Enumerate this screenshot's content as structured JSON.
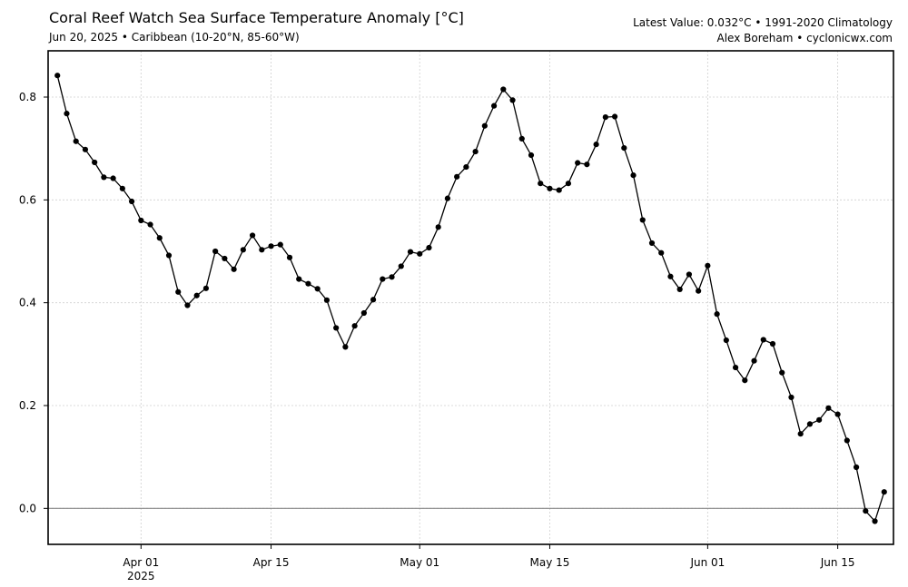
{
  "header": {
    "title": "Coral Reef Watch Sea Surface Temperature Anomaly [°C]",
    "subtitle": "Jun 20, 2025 • Caribbean (10-20°N, 85-60°W)",
    "latest": "Latest Value: 0.032°C • 1991-2020 Climatology",
    "credit": "Alex Boreham • cyclonicwx.com"
  },
  "chart_data": {
    "type": "line",
    "title": "Coral Reef Watch Sea Surface Temperature Anomaly [°C]",
    "subtitle": "Jun 20, 2025 • Caribbean (10-20°N, 85-60°W)",
    "xlabel": "",
    "ylabel": "",
    "x_start": "2025-03-23",
    "x_end": "2025-06-20",
    "xlim": [
      "2025-03-22",
      "2025-06-21"
    ],
    "ylim": [
      -0.07,
      0.89
    ],
    "grid": true,
    "zero_line": true,
    "series_color": "#000000",
    "zero_line_color": "#888888",
    "xticks": [
      {
        "date": "2025-04-01",
        "label": "Apr 01",
        "sublabel": "2025"
      },
      {
        "date": "2025-04-15",
        "label": "Apr 15",
        "sublabel": ""
      },
      {
        "date": "2025-05-01",
        "label": "May 01",
        "sublabel": ""
      },
      {
        "date": "2025-05-15",
        "label": "May 15",
        "sublabel": ""
      },
      {
        "date": "2025-06-01",
        "label": "Jun 01",
        "sublabel": ""
      },
      {
        "date": "2025-06-15",
        "label": "Jun 15",
        "sublabel": ""
      }
    ],
    "yticks": [
      0.0,
      0.2,
      0.4,
      0.6,
      0.8
    ],
    "ytick_labels": [
      "0.0",
      "0.2",
      "0.4",
      "0.6",
      "0.8"
    ],
    "values": [
      0.842,
      0.768,
      0.714,
      0.698,
      0.673,
      0.644,
      0.642,
      0.622,
      0.597,
      0.56,
      0.552,
      0.526,
      0.492,
      0.421,
      0.395,
      0.414,
      0.428,
      0.5,
      0.486,
      0.465,
      0.503,
      0.531,
      0.503,
      0.51,
      0.513,
      0.488,
      0.446,
      0.437,
      0.427,
      0.405,
      0.351,
      0.314,
      0.355,
      0.38,
      0.406,
      0.446,
      0.45,
      0.471,
      0.499,
      0.495,
      0.507,
      0.547,
      0.603,
      0.645,
      0.664,
      0.694,
      0.744,
      0.783,
      0.815,
      0.794,
      0.719,
      0.687,
      0.632,
      0.622,
      0.619,
      0.632,
      0.672,
      0.669,
      0.708,
      0.761,
      0.762,
      0.701,
      0.648,
      0.561,
      0.516,
      0.497,
      0.451,
      0.426,
      0.455,
      0.423,
      0.472,
      0.378,
      0.327,
      0.274,
      0.249,
      0.287,
      0.328,
      0.32,
      0.264,
      0.216,
      0.145,
      0.164,
      0.172,
      0.195,
      0.183,
      0.132,
      0.08,
      -0.005,
      -0.025,
      0.032
    ]
  }
}
